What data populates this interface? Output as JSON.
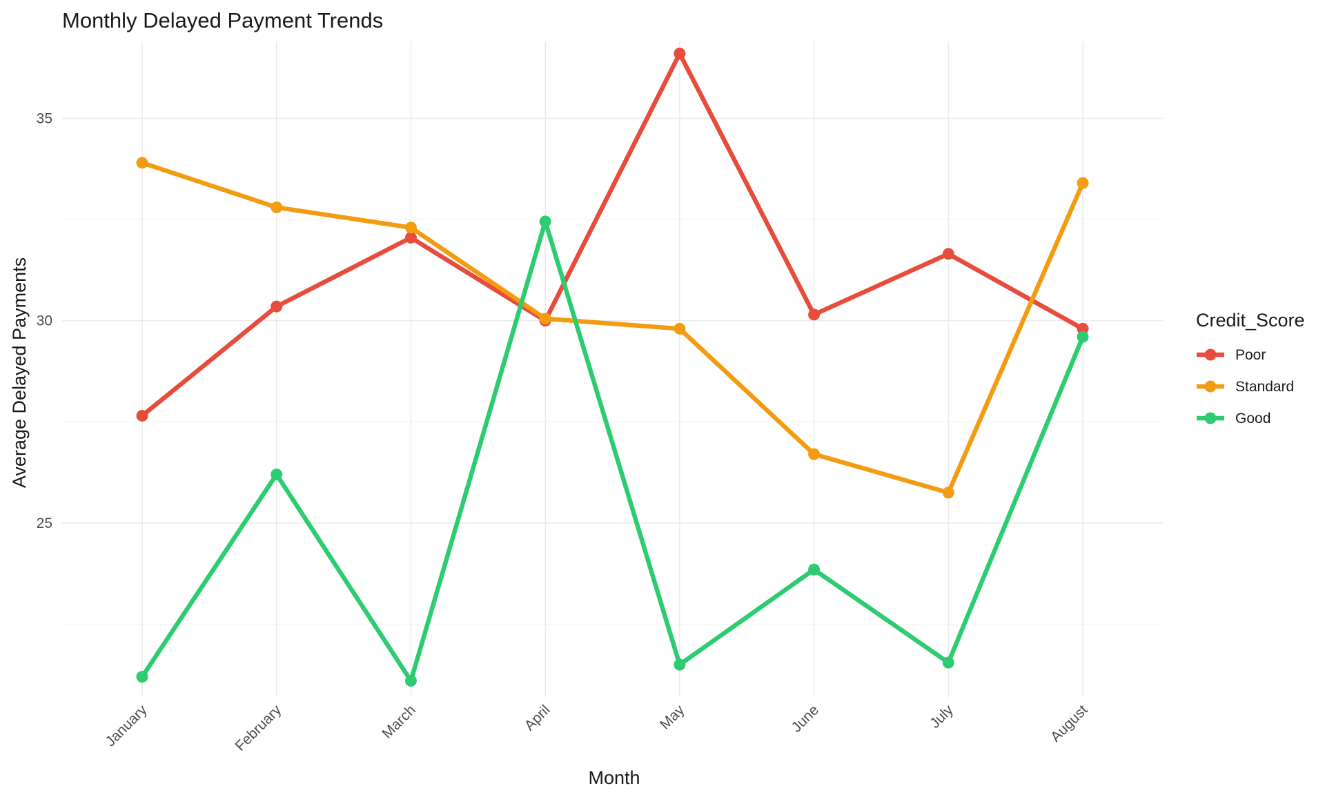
{
  "chart_data": {
    "type": "line",
    "title": "Monthly Delayed Payment Trends",
    "xlabel": "Month",
    "ylabel": "Average Delayed Payments",
    "categories": [
      "January",
      "February",
      "March",
      "April",
      "May",
      "June",
      "July",
      "August"
    ],
    "ylim": [
      20.7,
      36.9
    ],
    "yticks": [
      25,
      30,
      35
    ],
    "grid": true,
    "legend": {
      "title": "Credit_Score",
      "position": "right"
    },
    "series": [
      {
        "name": "Poor",
        "color": "#e74c3c",
        "values": [
          27.65,
          30.35,
          32.05,
          30.0,
          36.6,
          30.15,
          31.65,
          29.8
        ]
      },
      {
        "name": "Standard",
        "color": "#f39c12",
        "values": [
          33.9,
          32.8,
          32.3,
          30.05,
          29.8,
          26.7,
          25.75,
          33.4
        ]
      },
      {
        "name": "Good",
        "color": "#2ecc71",
        "values": [
          21.2,
          26.2,
          21.1,
          32.45,
          21.5,
          23.85,
          21.55,
          29.6
        ]
      }
    ]
  }
}
